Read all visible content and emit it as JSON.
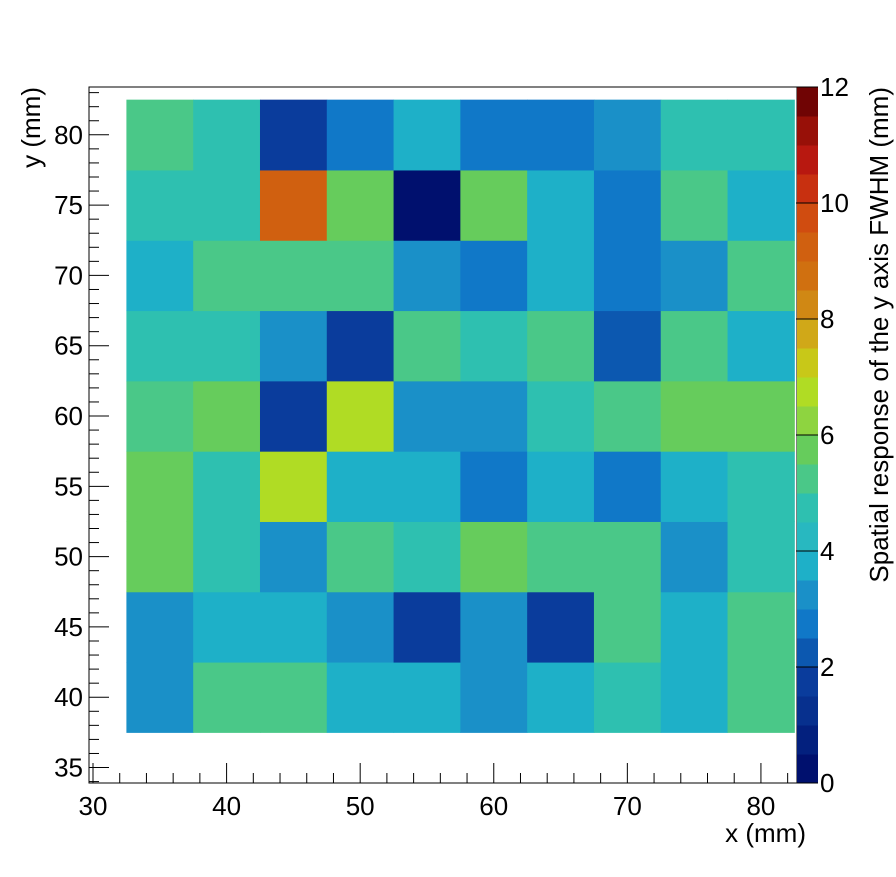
{
  "chart_data": {
    "type": "heatmap",
    "x_label": "x (mm)",
    "y_label": "y (mm)",
    "z_label": "Spatial response of the y axis FWHM (mm)",
    "xbins": [
      32.5,
      37.5,
      42.5,
      47.5,
      52.5,
      57.5,
      62.5,
      67.5,
      72.5,
      77.5,
      82.5
    ],
    "ybins": [
      37.5,
      42.5,
      47.5,
      52.5,
      57.5,
      62.5,
      67.5,
      72.5,
      77.5,
      82.5
    ],
    "z": [
      [
        3.3,
        5.3,
        5.3,
        3.9,
        3.9,
        3.3,
        3.9,
        4.5,
        3.9,
        5.3
      ],
      [
        3.3,
        3.9,
        3.9,
        3.3,
        1.5,
        3.3,
        1.5,
        5.3,
        3.9,
        5.3
      ],
      [
        5.8,
        4.5,
        3.3,
        5.3,
        4.5,
        5.8,
        5.3,
        5.3,
        3.3,
        4.5
      ],
      [
        5.8,
        4.5,
        6.8,
        3.9,
        3.9,
        2.8,
        3.9,
        2.8,
        3.9,
        4.5
      ],
      [
        5.3,
        5.8,
        1.5,
        6.8,
        3.3,
        3.3,
        4.5,
        5.3,
        5.8,
        5.8
      ],
      [
        4.5,
        4.5,
        3.3,
        1.5,
        5.3,
        4.5,
        5.3,
        2.2,
        5.3,
        3.9
      ],
      [
        3.9,
        5.3,
        5.3,
        5.3,
        3.3,
        2.8,
        3.9,
        2.8,
        3.3,
        5.3
      ],
      [
        4.5,
        4.5,
        9.2,
        5.8,
        0.3,
        5.8,
        3.9,
        2.8,
        5.3,
        3.9
      ],
      [
        5.3,
        4.5,
        1.5,
        2.8,
        3.9,
        2.8,
        2.8,
        3.3,
        4.5,
        4.5
      ]
    ],
    "xlim": [
      29.7,
      82.7
    ],
    "ylim": [
      33.9,
      83.4
    ],
    "zlim": [
      0,
      12
    ],
    "xticks": [
      30,
      40,
      50,
      60,
      70,
      80
    ],
    "yticks": [
      35,
      40,
      45,
      50,
      55,
      60,
      65,
      70,
      75,
      80
    ],
    "zticks": [
      0,
      2,
      4,
      6,
      8,
      10,
      12
    ],
    "x_minor_ticks": [
      32,
      34,
      36,
      38,
      42,
      44,
      46,
      48,
      52,
      54,
      56,
      58,
      62,
      64,
      66,
      68,
      72,
      74,
      76,
      78,
      82
    ],
    "y_minor_ticks": [
      34,
      36,
      37,
      38,
      39,
      41,
      42,
      43,
      44,
      46,
      47,
      48,
      49,
      51,
      52,
      53,
      54,
      56,
      57,
      58,
      59,
      61,
      62,
      63,
      64,
      66,
      67,
      68,
      69,
      71,
      72,
      73,
      74,
      76,
      77,
      78,
      79,
      81,
      82,
      83
    ],
    "palette": [
      "#00106e",
      "#03207e",
      "#07308e",
      "#0a3c9c",
      "#0c58b0",
      "#1078c8",
      "#1a90c8",
      "#1eb0c8",
      "#28b8c0",
      "#2ec0b0",
      "#4ac888",
      "#66cc5c",
      "#8ed440",
      "#b0dc24",
      "#c8c818",
      "#d0a818",
      "#d08814",
      "#d07010",
      "#d06010",
      "#d04c10",
      "#c83010",
      "#b81810",
      "#981008",
      "#700404"
    ]
  }
}
